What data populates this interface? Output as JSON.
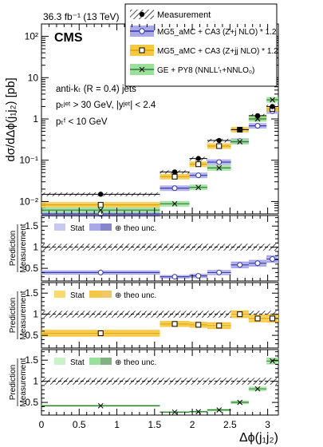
{
  "header": {
    "lumi": "36.3 fb⁻¹ (13 TeV)",
    "experiment": "CMS"
  },
  "cuts": [
    "anti-kₜ (R = 0.4) jets",
    "pₜʲᵉᵗ > 30 GeV, |yʲᵉᵗ| < 2.4",
    "pₜᶠ < 10 GeV"
  ],
  "colors": {
    "mg_zj": "#3333aa",
    "mg_zj_band": "#a9a9e8",
    "mg_zj_band_stat": "#c8c8f0",
    "mg_zjj": "#e6a100",
    "mg_zjj_band": "#f5c842",
    "ge": "#2e7d32",
    "ge_band": "#9ae09a",
    "ge_band_stat": "#c9f2c9",
    "hatch": "#000000"
  },
  "chart_data": {
    "type": "scatter",
    "xlabel": "Δϕ(j₁j₂)",
    "ylabel_top": "dσ/dΔϕ(j₁j₂) [pb]",
    "ylabel_ratio": "Prediction / Measurement",
    "xlim": [
      0,
      3.14159
    ],
    "x_ticks": [
      0,
      0.5,
      1,
      1.5,
      2,
      2.5,
      3
    ],
    "x_tick_labels": [
      "0",
      "0.5",
      "1",
      "1.5",
      "2",
      "2.5",
      "3"
    ],
    "top_ylim": [
      0.005,
      200
    ],
    "top_log": true,
    "top_y_ticks": [
      0.01,
      0.1,
      1,
      10,
      100
    ],
    "top_y_tick_labels": [
      "10⁻²",
      "10⁻¹",
      "1",
      "10",
      "10²"
    ],
    "ratio_ylim": [
      0.2,
      1.75
    ],
    "ratio_y_ticks": [
      0.5,
      1,
      1.5
    ],
    "ratio_y_tick_labels": [
      "0.5",
      "1",
      "1.5"
    ],
    "bins": [
      [
        0,
        1.571
      ],
      [
        1.571,
        1.963
      ],
      [
        1.963,
        2.199
      ],
      [
        2.199,
        2.513
      ],
      [
        2.513,
        2.749
      ],
      [
        2.749,
        2.985
      ],
      [
        2.985,
        3.1416
      ]
    ],
    "x_centers": [
      0.785,
      1.767,
      2.081,
      2.356,
      2.631,
      2.867,
      3.063
    ],
    "legend": {
      "measurement": "Measurement",
      "mg_zj": "MG5_aMC + CA3 (Z+j NLO) * 1.2",
      "mg_zjj": "MG5_aMC + CA3 (Z+jj NLO) * 1.2",
      "ge": "GE + PY8 (NNLL′ₜ+NNLO₀)"
    },
    "series": [
      {
        "name": "Measurement",
        "values": [
          0.015,
          0.052,
          0.11,
          0.3,
          0.55,
          1.2,
          2.0
        ],
        "unc_frac": 0.1
      },
      {
        "name": "MG5_aMC + CA3 (Z+j NLO) * 1.2",
        "values": [
          0.005,
          0.021,
          0.043,
          0.09,
          0.29,
          0.68,
          1.55
        ]
      },
      {
        "name": "MG5_aMC + CA3 (Z+jj NLO) * 1.2",
        "values": [
          0.0083,
          0.04,
          0.08,
          0.22,
          0.55,
          1.04,
          1.75
        ]
      },
      {
        "name": "GE + PY8 (NNLL′ₜ+NNLO₀)",
        "values": [
          0.0062,
          0.0088,
          0.022,
          0.065,
          0.28,
          1.0,
          2.9
        ]
      }
    ],
    "ratios": [
      {
        "panel": "mg_zj",
        "stat_label": "Stat",
        "theo_label": "⊕ theo unc.",
        "values": [
          0.4,
          0.3,
          0.32,
          0.4,
          0.58,
          0.62,
          0.72
        ],
        "stat": [
          0.02,
          0.02,
          0.02,
          0.03,
          0.03,
          0.03,
          0.04
        ],
        "theo": [
          0.05,
          0.04,
          0.05,
          0.06,
          0.08,
          0.08,
          0.09
        ]
      },
      {
        "panel": "mg_zjj",
        "stat_label": "Stat",
        "theo_label": "⊕ theo unc.",
        "values": [
          0.55,
          0.77,
          0.75,
          0.73,
          1.0,
          0.9,
          0.9
        ],
        "stat": [
          0.03,
          0.03,
          0.03,
          0.04,
          0.04,
          0.05,
          0.05
        ],
        "theo": [
          0.08,
          0.07,
          0.07,
          0.08,
          0.09,
          0.09,
          0.1
        ]
      },
      {
        "panel": "ge",
        "stat_label": "Stat",
        "theo_label": "⊕ theo unc.",
        "values": [
          0.42,
          0.27,
          0.28,
          0.32,
          0.5,
          0.82,
          1.48
        ],
        "stat": [
          0.01,
          0.01,
          0.01,
          0.02,
          0.02,
          0.03,
          0.04
        ],
        "theo": [
          0.02,
          0.02,
          0.02,
          0.03,
          0.04,
          0.05,
          0.08
        ]
      }
    ]
  }
}
